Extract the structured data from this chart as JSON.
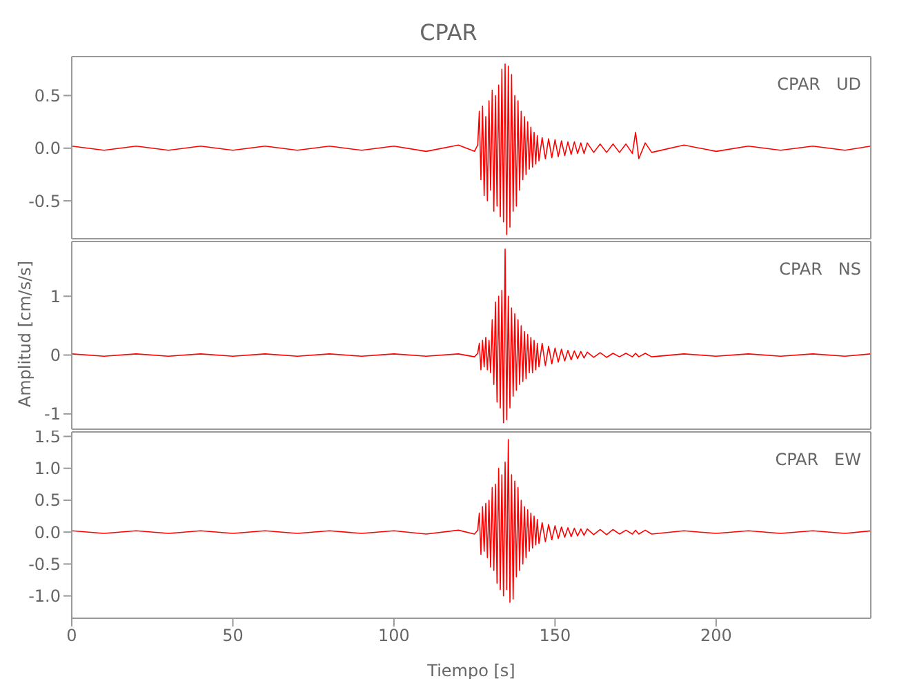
{
  "chart_data": [
    {
      "type": "line",
      "title": "CPAR",
      "annotations": [
        "CPAR   UD"
      ],
      "tick_labels": "y",
      "xlim": [
        0,
        248
      ],
      "xticks": [
        0,
        50,
        100,
        150,
        200
      ],
      "ylim": [
        -0.86,
        0.87
      ],
      "yticks": [
        {
          "value": -0.5,
          "label": "-0.5"
        },
        {
          "value": 0,
          "label": "0.0"
        },
        {
          "value": 0.5,
          "label": "0.5"
        }
      ],
      "x": [
        0,
        10,
        20,
        30,
        40,
        50,
        60,
        70,
        80,
        90,
        100,
        110,
        120,
        125,
        126,
        126.5,
        127,
        127.5,
        128,
        128.5,
        129,
        129.5,
        130,
        130.5,
        131,
        131.5,
        132,
        132.5,
        133,
        133.5,
        134,
        134.5,
        135,
        135.5,
        136,
        136.5,
        137,
        137.5,
        138,
        138.5,
        139,
        139.5,
        140,
        140.5,
        141,
        141.5,
        142,
        142.5,
        143,
        143.5,
        144,
        144.5,
        145,
        146,
        147,
        148,
        149,
        150,
        151,
        152,
        153,
        154,
        155,
        156,
        157,
        158,
        159,
        160,
        162,
        164,
        166,
        168,
        170,
        172,
        174,
        175,
        176,
        178,
        180,
        190,
        200,
        210,
        220,
        230,
        240,
        248
      ],
      "series": [
        {
          "color": "#ff0000",
          "values": [
            0.02,
            -0.02,
            0.02,
            -0.02,
            0.02,
            -0.02,
            0.02,
            -0.02,
            0.02,
            -0.02,
            0.02,
            -0.03,
            0.03,
            -0.03,
            0.03,
            0.35,
            -0.3,
            0.4,
            -0.45,
            0.3,
            -0.5,
            0.45,
            -0.4,
            0.55,
            -0.6,
            0.5,
            -0.55,
            0.6,
            -0.65,
            0.75,
            -0.7,
            0.8,
            -0.82,
            0.78,
            -0.75,
            0.7,
            -0.6,
            0.5,
            -0.55,
            0.45,
            -0.4,
            0.35,
            -0.3,
            0.3,
            -0.25,
            0.25,
            -0.2,
            0.2,
            -0.18,
            0.15,
            -0.15,
            0.12,
            -0.12,
            0.1,
            -0.1,
            0.09,
            -0.09,
            0.08,
            -0.08,
            0.07,
            -0.07,
            0.06,
            -0.06,
            0.06,
            -0.05,
            0.05,
            -0.05,
            0.05,
            -0.04,
            0.04,
            -0.04,
            0.04,
            -0.04,
            0.04,
            -0.05,
            0.15,
            -0.1,
            0.05,
            -0.04,
            0.03,
            -0.03,
            0.02,
            -0.02,
            0.02,
            -0.02,
            0.02
          ]
        }
      ]
    },
    {
      "type": "line",
      "ylabel": "Amplitud [cm/s/s]",
      "annotations": [
        "CPAR   NS"
      ],
      "tick_labels": "y",
      "xlim": [
        0,
        248
      ],
      "xticks": [
        0,
        50,
        100,
        150,
        200
      ],
      "ylim": [
        -1.26,
        1.93
      ],
      "yticks": [
        -1,
        0,
        1
      ],
      "x": [
        0,
        10,
        20,
        30,
        40,
        50,
        60,
        70,
        80,
        90,
        100,
        110,
        120,
        125,
        126,
        126.5,
        127,
        127.5,
        128,
        128.5,
        129,
        129.5,
        130,
        130.5,
        131,
        131.5,
        132,
        132.5,
        133,
        133.5,
        134,
        134.5,
        135,
        135.5,
        136,
        136.5,
        137,
        137.5,
        138,
        138.5,
        139,
        139.5,
        140,
        140.5,
        141,
        141.5,
        142,
        142.5,
        143,
        143.5,
        144,
        144.5,
        145,
        146,
        147,
        148,
        149,
        150,
        151,
        152,
        153,
        154,
        155,
        156,
        157,
        158,
        159,
        160,
        162,
        164,
        166,
        168,
        170,
        172,
        174,
        175,
        176,
        178,
        180,
        190,
        200,
        210,
        220,
        230,
        240,
        248
      ],
      "series": [
        {
          "color": "#ff0000",
          "values": [
            0.02,
            -0.02,
            0.02,
            -0.02,
            0.02,
            -0.02,
            0.02,
            -0.02,
            0.02,
            -0.02,
            0.02,
            -0.02,
            0.02,
            -0.03,
            0.03,
            0.2,
            -0.25,
            0.25,
            -0.2,
            0.3,
            -0.25,
            0.25,
            -0.3,
            0.6,
            -0.5,
            0.9,
            -0.8,
            1.0,
            -0.9,
            1.1,
            -1.15,
            1.8,
            -1.1,
            1.0,
            -0.9,
            0.8,
            -0.7,
            0.7,
            -0.6,
            0.6,
            -0.5,
            0.5,
            -0.45,
            0.4,
            -0.4,
            0.35,
            -0.3,
            0.3,
            -0.3,
            0.25,
            -0.25,
            0.2,
            -0.2,
            0.2,
            -0.18,
            0.15,
            -0.15,
            0.12,
            -0.12,
            0.1,
            -0.1,
            0.08,
            -0.08,
            0.07,
            -0.06,
            0.06,
            -0.05,
            0.05,
            -0.04,
            0.04,
            -0.04,
            0.03,
            -0.03,
            0.03,
            -0.03,
            0.03,
            -0.03,
            0.03,
            -0.03,
            0.02,
            -0.02,
            0.02,
            -0.02,
            0.02,
            -0.02,
            0.02
          ]
        }
      ]
    },
    {
      "type": "line",
      "xlabel": "Tiempo [s]",
      "annotations": [
        "CPAR   EW"
      ],
      "xlim": [
        0,
        248
      ],
      "xticks": [
        0,
        50,
        100,
        150,
        200
      ],
      "ylim": [
        -1.35,
        1.57
      ],
      "yticks": [
        {
          "value": -1,
          "label": "-1.0"
        },
        {
          "value": -0.5,
          "label": "-0.5"
        },
        {
          "value": 0,
          "label": "0.0"
        },
        {
          "value": 0.5,
          "label": "0.5"
        },
        {
          "value": 1,
          "label": "1.0"
        },
        {
          "value": 1.5,
          "label": "1.5"
        }
      ],
      "x": [
        0,
        10,
        20,
        30,
        40,
        50,
        60,
        70,
        80,
        90,
        100,
        110,
        120,
        125,
        126,
        126.5,
        127,
        127.5,
        128,
        128.5,
        129,
        129.5,
        130,
        130.5,
        131,
        131.5,
        132,
        132.5,
        133,
        133.5,
        134,
        134.5,
        135,
        135.5,
        136,
        136.5,
        137,
        137.5,
        138,
        138.5,
        139,
        139.5,
        140,
        140.5,
        141,
        141.5,
        142,
        142.5,
        143,
        143.5,
        144,
        144.5,
        145,
        146,
        147,
        148,
        149,
        150,
        151,
        152,
        153,
        154,
        155,
        156,
        157,
        158,
        159,
        160,
        162,
        164,
        166,
        168,
        170,
        172,
        174,
        175,
        176,
        178,
        180,
        190,
        200,
        210,
        220,
        230,
        240,
        248
      ],
      "series": [
        {
          "color": "#ff0000",
          "values": [
            0.02,
            -0.02,
            0.02,
            -0.02,
            0.02,
            -0.02,
            0.02,
            -0.02,
            0.02,
            -0.02,
            0.02,
            -0.03,
            0.03,
            -0.03,
            0.03,
            0.3,
            -0.35,
            0.4,
            -0.3,
            0.45,
            -0.4,
            0.5,
            -0.55,
            0.7,
            -0.6,
            0.75,
            -0.8,
            1.0,
            -0.9,
            0.9,
            -1.0,
            1.1,
            -0.9,
            1.45,
            -1.1,
            0.9,
            -1.05,
            0.8,
            -0.7,
            0.7,
            -0.6,
            0.5,
            -0.5,
            0.4,
            -0.4,
            0.35,
            -0.3,
            0.3,
            -0.25,
            0.25,
            -0.2,
            0.2,
            -0.18,
            0.15,
            -0.15,
            0.12,
            -0.12,
            0.1,
            -0.1,
            0.08,
            -0.08,
            0.07,
            -0.07,
            0.06,
            -0.06,
            0.05,
            -0.05,
            0.05,
            -0.04,
            0.04,
            -0.04,
            0.04,
            -0.03,
            0.03,
            -0.03,
            0.03,
            -0.03,
            0.03,
            -0.03,
            0.02,
            -0.02,
            0.02,
            -0.02,
            0.02,
            -0.02,
            0.02
          ]
        }
      ]
    }
  ]
}
